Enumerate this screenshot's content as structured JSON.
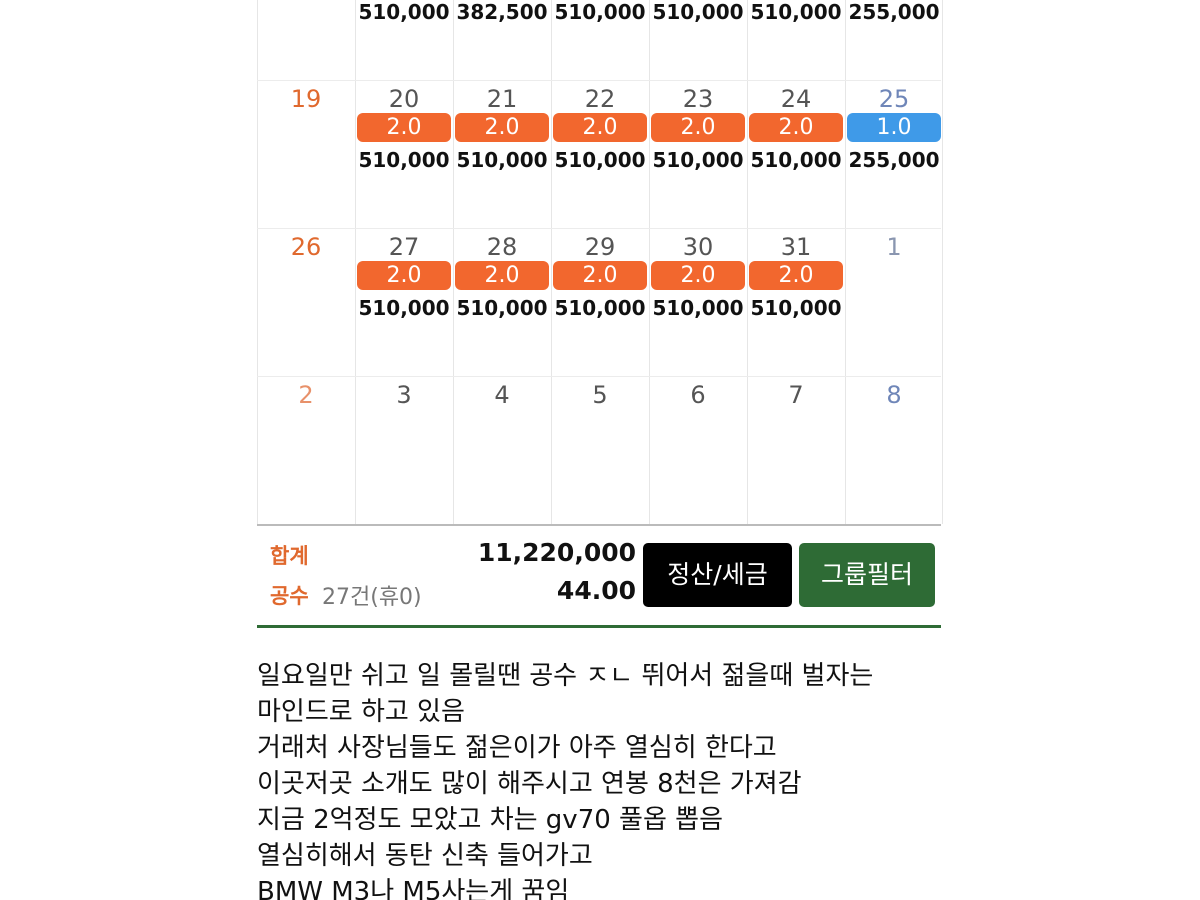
{
  "calendar": {
    "top_row_amounts": [
      "510,000",
      "382,500",
      "510,000",
      "510,000",
      "510,000",
      "255,000"
    ],
    "weeks": [
      {
        "days": [
          {
            "day": "19"
          },
          {
            "day": "20",
            "badge": "2.0",
            "badge_color": "#f2672e",
            "amount": "510,000"
          },
          {
            "day": "21",
            "badge": "2.0",
            "badge_color": "#f2672e",
            "amount": "510,000"
          },
          {
            "day": "22",
            "badge": "2.0",
            "badge_color": "#f2672e",
            "amount": "510,000"
          },
          {
            "day": "23",
            "badge": "2.0",
            "badge_color": "#f2672e",
            "amount": "510,000"
          },
          {
            "day": "24",
            "badge": "2.0",
            "badge_color": "#f2672e",
            "amount": "510,000"
          },
          {
            "day": "25",
            "badge": "1.0",
            "badge_color": "#3f9ae8",
            "amount": "255,000"
          }
        ]
      },
      {
        "days": [
          {
            "day": "26"
          },
          {
            "day": "27",
            "badge": "2.0",
            "badge_color": "#f2672e",
            "amount": "510,000"
          },
          {
            "day": "28",
            "badge": "2.0",
            "badge_color": "#f2672e",
            "amount": "510,000"
          },
          {
            "day": "29",
            "badge": "2.0",
            "badge_color": "#f2672e",
            "amount": "510,000"
          },
          {
            "day": "30",
            "badge": "2.0",
            "badge_color": "#f2672e",
            "amount": "510,000"
          },
          {
            "day": "31",
            "badge": "2.0",
            "badge_color": "#f2672e",
            "amount": "510,000"
          },
          {
            "day": "1"
          }
        ]
      },
      {
        "days": [
          {
            "day": "2"
          },
          {
            "day": "3"
          },
          {
            "day": "4"
          },
          {
            "day": "5"
          },
          {
            "day": "6"
          },
          {
            "day": "7"
          },
          {
            "day": "8"
          }
        ]
      }
    ]
  },
  "summary": {
    "total_label": "합계",
    "total": "11,220,000",
    "count_label": "공수",
    "count_note": "27건(휴0)",
    "count": "44.00",
    "buttons": [
      "정산/세금",
      "그룹필터"
    ]
  },
  "post": {
    "lines": [
      "일요일만 쉬고 일 몰릴땐 공수 ㅈㄴ 뛰어서 젊을때 벌자는",
      "마인드로 하고 있음",
      "거래처 사장님들도 젊은이가 아주 열심히 한다고",
      "이곳저곳 소개도 많이 해주시고  연봉 8천은 가져감",
      "지금 2억정도 모았고 차는 gv70 풀옵 뽑음",
      "열심히해서 동탄 신축 들어가고",
      "BMW M3나 M5사는게 꿈임"
    ]
  }
}
